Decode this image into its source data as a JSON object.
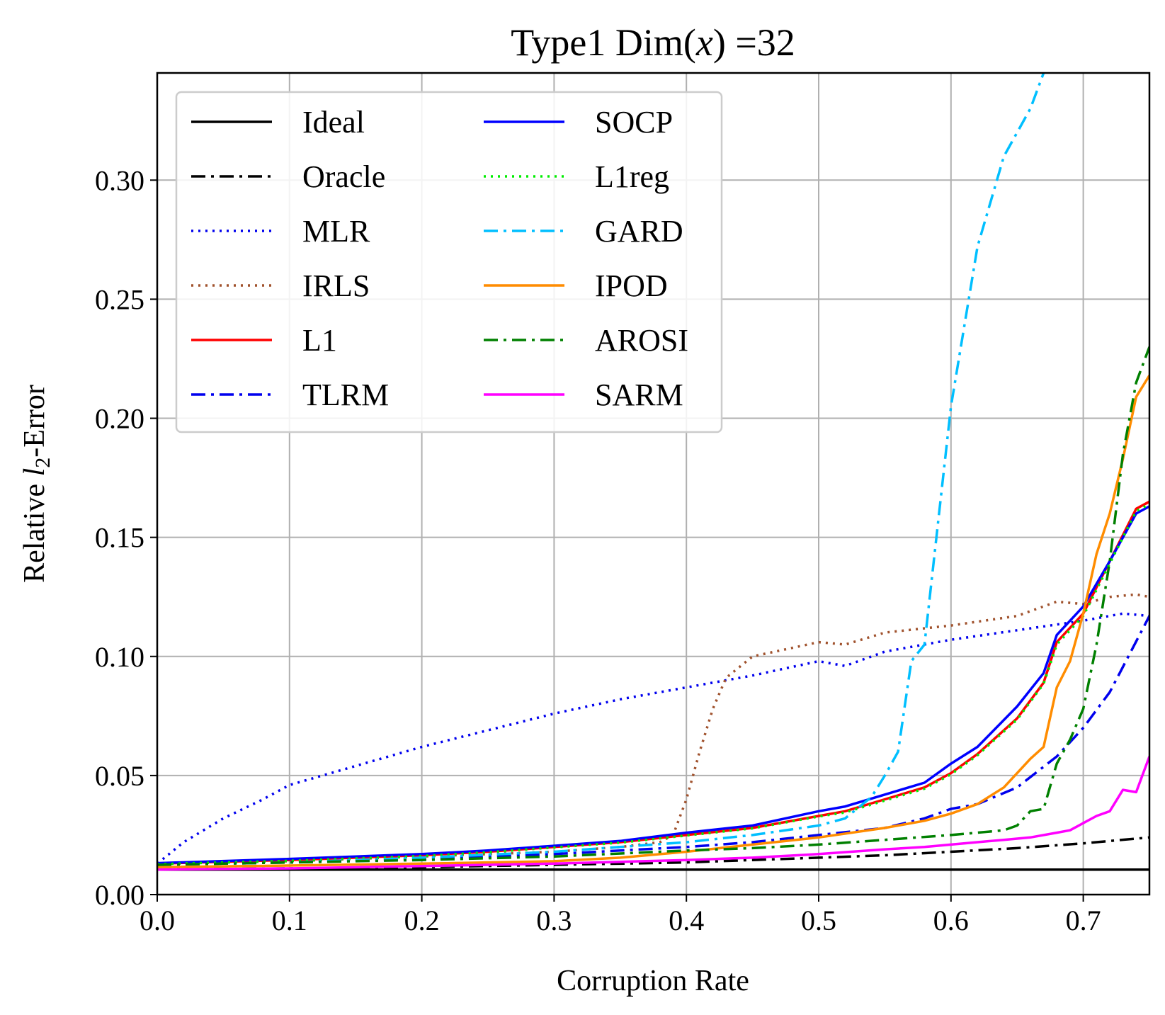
{
  "chart_data": {
    "type": "line",
    "title": "Type1  Dim(x) =32",
    "title_parts": {
      "prefix": "Type1  Dim(",
      "var": "x",
      "suffix": ") =32"
    },
    "xlabel": "Corruption Rate",
    "ylabel": "Relative l2-Error",
    "ylabel_parts": {
      "prefix": "Relative ",
      "var": "l",
      "sub": "2",
      "suffix": "-Error"
    },
    "xlim": [
      0.0,
      0.75
    ],
    "ylim": [
      0.0,
      0.345
    ],
    "xticks": [
      0.0,
      0.1,
      0.2,
      0.3,
      0.4,
      0.5,
      0.6,
      0.7
    ],
    "xtick_labels": [
      "0.0",
      "0.1",
      "0.2",
      "0.3",
      "0.4",
      "0.5",
      "0.6",
      "0.7"
    ],
    "yticks": [
      0.0,
      0.05,
      0.1,
      0.15,
      0.2,
      0.25,
      0.3
    ],
    "ytick_labels": [
      "0.00",
      "0.05",
      "0.10",
      "0.15",
      "0.20",
      "0.25",
      "0.30"
    ],
    "grid": true,
    "legend_position": "top-left",
    "legend_columns": 2,
    "series": [
      {
        "name": "Ideal",
        "color": "#000000",
        "style": "solid",
        "x": [
          0.0,
          0.75
        ],
        "y": [
          0.0105,
          0.0105
        ]
      },
      {
        "name": "Oracle",
        "color": "#000000",
        "style": "dashdot",
        "x": [
          0.0,
          0.1,
          0.2,
          0.3,
          0.4,
          0.45,
          0.5,
          0.55,
          0.6,
          0.65,
          0.7,
          0.72,
          0.75
        ],
        "y": [
          0.0105,
          0.011,
          0.0115,
          0.0125,
          0.0135,
          0.0145,
          0.0155,
          0.0165,
          0.018,
          0.0195,
          0.0215,
          0.0225,
          0.024
        ]
      },
      {
        "name": "MLR",
        "color": "#0000ee",
        "style": "dotted",
        "x": [
          0.0,
          0.02,
          0.05,
          0.08,
          0.1,
          0.15,
          0.2,
          0.25,
          0.3,
          0.35,
          0.4,
          0.45,
          0.5,
          0.52,
          0.55,
          0.6,
          0.65,
          0.7,
          0.73,
          0.75
        ],
        "y": [
          0.013,
          0.022,
          0.032,
          0.04,
          0.046,
          0.054,
          0.062,
          0.069,
          0.076,
          0.082,
          0.087,
          0.092,
          0.098,
          0.096,
          0.102,
          0.107,
          0.111,
          0.115,
          0.118,
          0.117
        ]
      },
      {
        "name": "IRLS",
        "color": "#a0522d",
        "style": "dotted",
        "x": [
          0.0,
          0.1,
          0.2,
          0.3,
          0.35,
          0.38,
          0.39,
          0.4,
          0.41,
          0.42,
          0.43,
          0.45,
          0.5,
          0.52,
          0.55,
          0.6,
          0.65,
          0.68,
          0.7,
          0.72,
          0.74,
          0.75
        ],
        "y": [
          0.013,
          0.014,
          0.016,
          0.018,
          0.02,
          0.022,
          0.025,
          0.04,
          0.06,
          0.078,
          0.091,
          0.1,
          0.106,
          0.105,
          0.11,
          0.113,
          0.117,
          0.123,
          0.122,
          0.125,
          0.126,
          0.125
        ]
      },
      {
        "name": "L1",
        "color": "#ff0000",
        "style": "solid",
        "x": [
          0.0,
          0.1,
          0.2,
          0.25,
          0.3,
          0.35,
          0.4,
          0.45,
          0.5,
          0.52,
          0.55,
          0.58,
          0.6,
          0.62,
          0.65,
          0.67,
          0.68,
          0.7,
          0.72,
          0.74,
          0.75
        ],
        "y": [
          0.013,
          0.0145,
          0.0165,
          0.018,
          0.02,
          0.022,
          0.025,
          0.028,
          0.033,
          0.035,
          0.04,
          0.045,
          0.051,
          0.059,
          0.074,
          0.089,
          0.106,
          0.118,
          0.14,
          0.162,
          0.165
        ]
      },
      {
        "name": "TLRM",
        "color": "#0000ee",
        "style": "dashdot",
        "x": [
          0.0,
          0.1,
          0.2,
          0.3,
          0.4,
          0.45,
          0.5,
          0.55,
          0.58,
          0.6,
          0.62,
          0.65,
          0.68,
          0.7,
          0.72,
          0.75
        ],
        "y": [
          0.0125,
          0.0135,
          0.015,
          0.017,
          0.02,
          0.022,
          0.025,
          0.028,
          0.032,
          0.036,
          0.038,
          0.045,
          0.058,
          0.07,
          0.085,
          0.117
        ]
      },
      {
        "name": "SOCP",
        "color": "#0000ff",
        "style": "solid",
        "x": [
          0.0,
          0.1,
          0.2,
          0.25,
          0.3,
          0.35,
          0.4,
          0.45,
          0.5,
          0.52,
          0.55,
          0.58,
          0.6,
          0.62,
          0.65,
          0.67,
          0.68,
          0.7,
          0.72,
          0.74,
          0.75
        ],
        "y": [
          0.0132,
          0.015,
          0.017,
          0.0185,
          0.0205,
          0.0225,
          0.026,
          0.029,
          0.035,
          0.037,
          0.042,
          0.047,
          0.055,
          0.062,
          0.079,
          0.093,
          0.109,
          0.121,
          0.14,
          0.16,
          0.163
        ]
      },
      {
        "name": "L1reg",
        "color": "#00ee00",
        "style": "dotted",
        "x": [
          0.0,
          0.1,
          0.2,
          0.25,
          0.3,
          0.35,
          0.4,
          0.45,
          0.5,
          0.52,
          0.55,
          0.58,
          0.6,
          0.62,
          0.65,
          0.67,
          0.68,
          0.7,
          0.72,
          0.74,
          0.75
        ],
        "y": [
          0.0128,
          0.0142,
          0.0162,
          0.0178,
          0.0198,
          0.0218,
          0.0248,
          0.0278,
          0.0328,
          0.0345,
          0.0395,
          0.0445,
          0.0505,
          0.0585,
          0.0735,
          0.0885,
          0.105,
          0.117,
          0.139,
          0.161,
          0.164
        ]
      },
      {
        "name": "GARD",
        "color": "#00bfff",
        "style": "dashdot",
        "x": [
          0.0,
          0.1,
          0.2,
          0.3,
          0.4,
          0.45,
          0.5,
          0.52,
          0.54,
          0.55,
          0.56,
          0.57,
          0.58,
          0.6,
          0.62,
          0.64,
          0.66,
          0.67
        ],
        "y": [
          0.0125,
          0.0135,
          0.0155,
          0.018,
          0.022,
          0.025,
          0.029,
          0.032,
          0.041,
          0.05,
          0.06,
          0.098,
          0.105,
          0.205,
          0.272,
          0.31,
          0.33,
          0.345
        ]
      },
      {
        "name": "IPOD",
        "color": "#ff8c00",
        "style": "solid",
        "x": [
          0.0,
          0.1,
          0.2,
          0.3,
          0.35,
          0.4,
          0.45,
          0.5,
          0.55,
          0.58,
          0.6,
          0.62,
          0.64,
          0.66,
          0.67,
          0.68,
          0.69,
          0.7,
          0.71,
          0.72,
          0.73,
          0.74,
          0.75
        ],
        "y": [
          0.0115,
          0.0122,
          0.013,
          0.014,
          0.0155,
          0.018,
          0.021,
          0.024,
          0.028,
          0.031,
          0.034,
          0.038,
          0.045,
          0.057,
          0.062,
          0.087,
          0.098,
          0.118,
          0.143,
          0.16,
          0.183,
          0.209,
          0.218
        ]
      },
      {
        "name": "AROSI",
        "color": "#008000",
        "style": "dashdot",
        "x": [
          0.0,
          0.1,
          0.2,
          0.3,
          0.4,
          0.45,
          0.5,
          0.55,
          0.6,
          0.62,
          0.64,
          0.65,
          0.66,
          0.67,
          0.68,
          0.69,
          0.7,
          0.71,
          0.72,
          0.73,
          0.74,
          0.75
        ],
        "y": [
          0.0125,
          0.0135,
          0.0145,
          0.016,
          0.0185,
          0.0195,
          0.021,
          0.023,
          0.025,
          0.026,
          0.027,
          0.029,
          0.035,
          0.036,
          0.055,
          0.065,
          0.078,
          0.105,
          0.14,
          0.185,
          0.215,
          0.23
        ]
      },
      {
        "name": "SARM",
        "color": "#ff00ff",
        "style": "solid",
        "x": [
          0.0,
          0.1,
          0.2,
          0.3,
          0.4,
          0.45,
          0.5,
          0.55,
          0.58,
          0.6,
          0.62,
          0.64,
          0.66,
          0.68,
          0.69,
          0.7,
          0.71,
          0.72,
          0.73,
          0.74,
          0.75
        ],
        "y": [
          0.0105,
          0.011,
          0.012,
          0.013,
          0.0145,
          0.0155,
          0.017,
          0.019,
          0.02,
          0.021,
          0.022,
          0.023,
          0.024,
          0.026,
          0.027,
          0.03,
          0.033,
          0.035,
          0.044,
          0.043,
          0.058
        ]
      }
    ]
  }
}
